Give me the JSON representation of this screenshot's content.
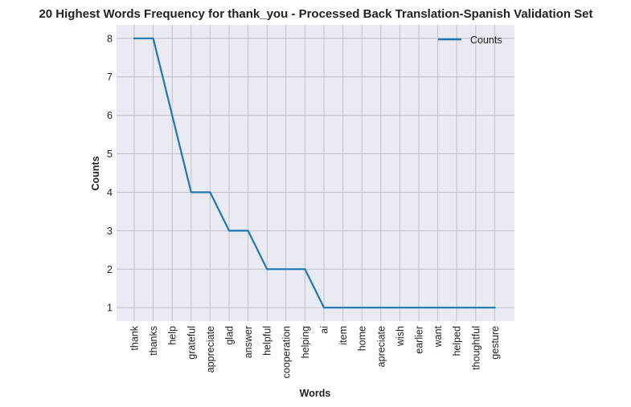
{
  "chart_data": {
    "type": "line",
    "title": "20 Highest Words Frequency for thank_you - Processed Back Translation-Spanish Validation Set",
    "xlabel": "Words",
    "ylabel": "Counts",
    "categories": [
      "thank",
      "thanks",
      "help",
      "grateful",
      "appreciate",
      "glad",
      "answer",
      "helpful",
      "cooperation",
      "helping",
      "ai",
      "item",
      "home",
      "apreciate",
      "wish",
      "earlier",
      "want",
      "helped",
      "thoughtful",
      "gesture"
    ],
    "series": [
      {
        "name": "Counts",
        "values": [
          8,
          8,
          6,
          4,
          4,
          3,
          3,
          2,
          2,
          2,
          1,
          1,
          1,
          1,
          1,
          1,
          1,
          1,
          1,
          1
        ]
      }
    ],
    "ylim": [
      0.65,
      8.35
    ],
    "yticks": [
      1,
      2,
      3,
      4,
      5,
      6,
      7,
      8
    ],
    "grid": true,
    "legend_position": "top-right",
    "colors": {
      "line": "#1f77b4",
      "plot_background": "#eaeaf2",
      "grid": "#c0c0c4",
      "text": "#222222"
    }
  }
}
